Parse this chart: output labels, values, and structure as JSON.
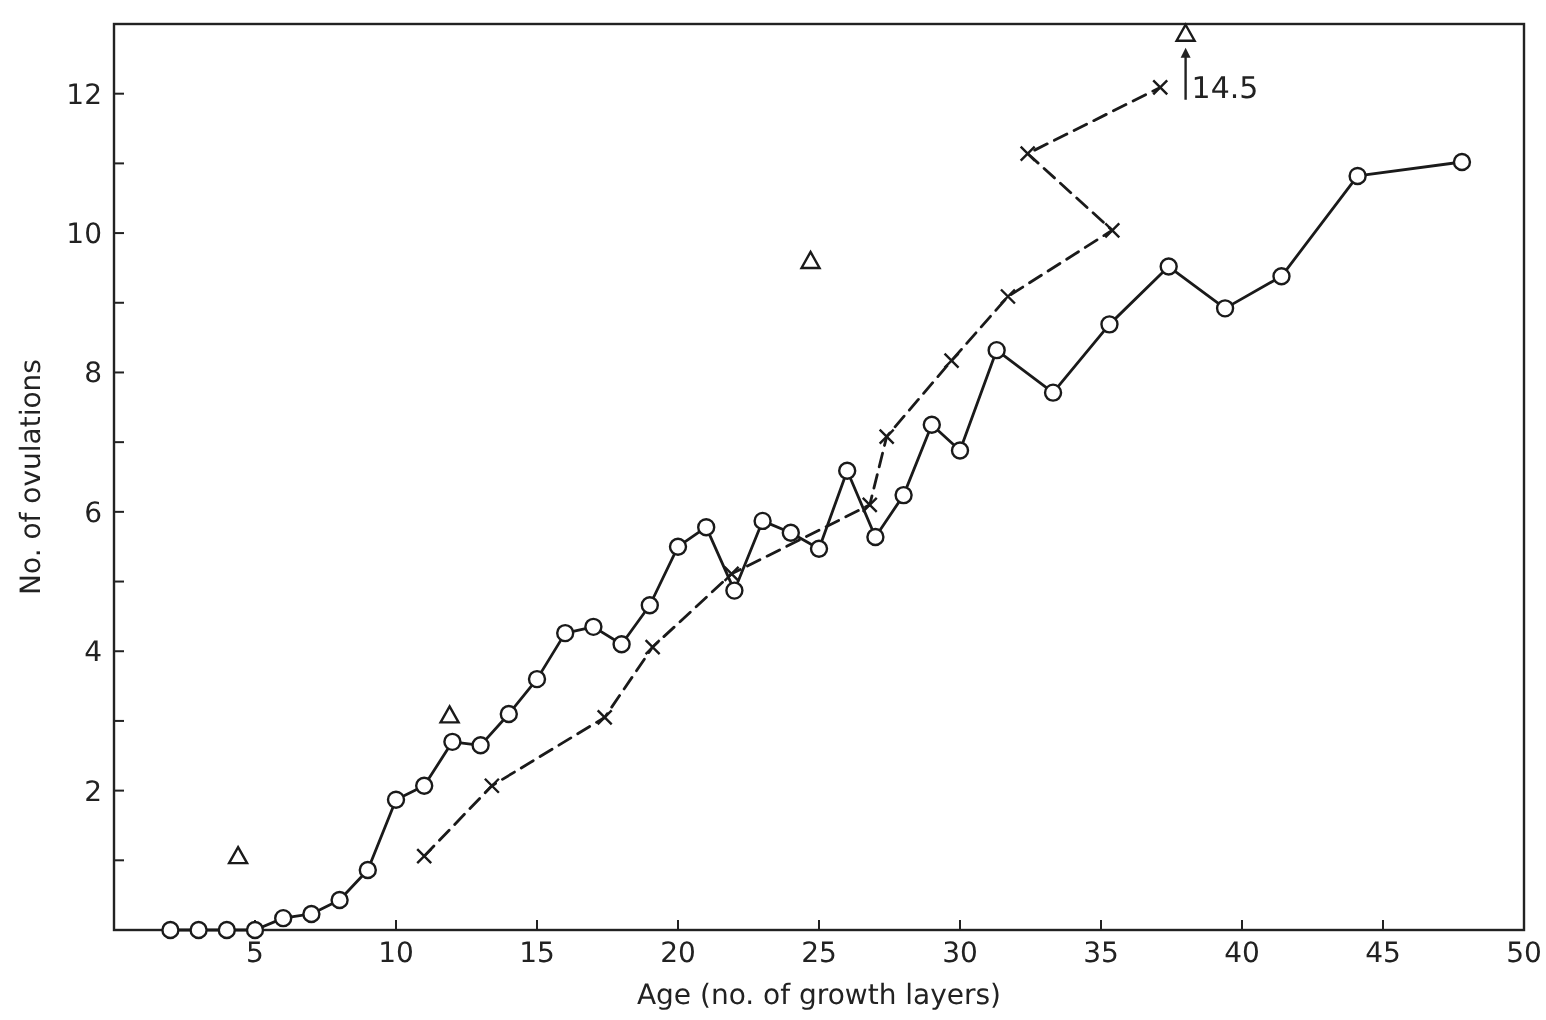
{
  "chart_data": {
    "type": "line",
    "xlabel": "Age (no. of growth layers)",
    "ylabel": "No. of ovulations",
    "xlim": [
      0,
      50
    ],
    "ylim": [
      0,
      13
    ],
    "xticks": [
      5,
      10,
      15,
      20,
      25,
      30,
      35,
      40,
      45,
      50
    ],
    "yticks": [
      {
        "value": 1,
        "label": null
      },
      2,
      {
        "value": 3,
        "label": null
      },
      4,
      {
        "value": 5,
        "label": null
      },
      6,
      {
        "value": 7,
        "label": null
      },
      8,
      {
        "value": 9,
        "label": null
      },
      10,
      {
        "value": 11,
        "label": null
      },
      12
    ],
    "grid": false,
    "annotations": [
      {
        "text": "14.5",
        "x": 38,
        "y": 12.86
      }
    ],
    "series": [
      {
        "color": "#1a1a1a",
        "marker": "circle",
        "line_style": "solid",
        "x": [
          2,
          3,
          4,
          5,
          6,
          7,
          8,
          9,
          10,
          11,
          12,
          13,
          14,
          15,
          16,
          17,
          18,
          19,
          20,
          21,
          22,
          23,
          24,
          25,
          26,
          27,
          28,
          29,
          30,
          31.3,
          33.3,
          35.3,
          37.4,
          39.4,
          41.4,
          44.1,
          47.8
        ],
        "values": [
          0,
          0,
          0,
          0,
          0.17,
          0.23,
          0.43,
          0.86,
          1.87,
          2.07,
          2.7,
          2.65,
          3.1,
          3.6,
          4.26,
          4.35,
          4.1,
          4.66,
          5.5,
          5.78,
          4.87,
          5.87,
          5.7,
          5.47,
          6.59,
          5.64,
          6.24,
          7.25,
          6.88,
          8.32,
          7.71,
          8.69,
          9.52,
          8.92,
          9.38,
          10.82,
          11.02
        ]
      },
      {
        "color": "#1a1a1a",
        "marker": "cross",
        "line_style": "dashed",
        "x": [
          11,
          13.4,
          17.4,
          19.1,
          21.9,
          26.8,
          27.4,
          29.7,
          31.7,
          35.4,
          32.4,
          37.1
        ],
        "values": [
          1.06,
          2.07,
          3.05,
          4.06,
          5.11,
          6.1,
          7.08,
          8.17,
          9.09,
          10.04,
          11.14,
          12.09
        ]
      },
      {
        "type": "scatter",
        "color": "#1a1a1a",
        "marker": "triangle",
        "x": [
          4.4,
          11.9,
          24.7,
          38
        ],
        "values": [
          1.06,
          3.08,
          9.6,
          12.86
        ]
      }
    ]
  }
}
